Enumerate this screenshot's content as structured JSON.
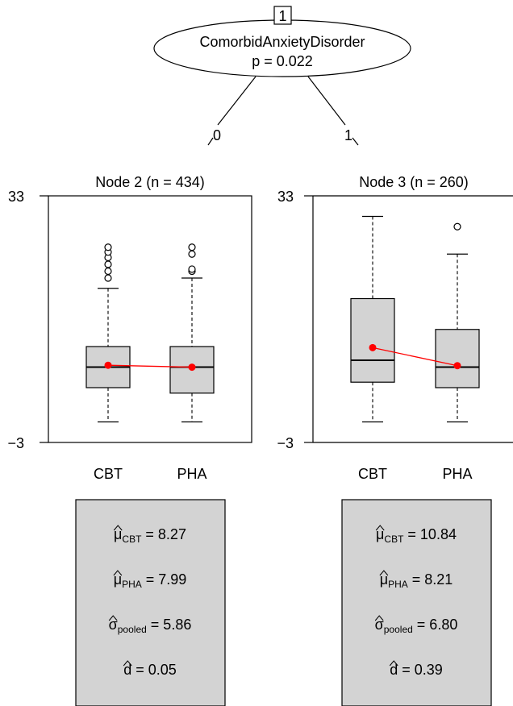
{
  "tree": {
    "root": {
      "id": "1",
      "variable": "ComorbidAnxietyDisorder",
      "pvalue": "p = 0.022"
    },
    "edges": [
      {
        "label": "0"
      },
      {
        "label": "1"
      }
    ]
  },
  "chart_data": [
    {
      "type": "boxplot",
      "title": "Node 2 (n = 434)",
      "ylim": [
        -3,
        33
      ],
      "yticks": [
        "33",
        "−3"
      ],
      "categories": [
        "CBT",
        "PHA"
      ],
      "box_color": "#d3d3d3",
      "mean_color": "#ff0000",
      "series": [
        {
          "name": "CBT",
          "whisker_low": 0,
          "q1": 5,
          "median": 8,
          "q3": 11,
          "whisker_high": 19.5,
          "outliers": [
            21,
            22,
            23,
            24,
            24.8,
            25.5
          ],
          "mean": 8.27
        },
        {
          "name": "PHA",
          "whisker_low": 0,
          "q1": 4.2,
          "median": 8,
          "q3": 11,
          "whisker_high": 21,
          "outliers": [
            22,
            22.3,
            24.5,
            25.5
          ],
          "mean": 7.99
        }
      ]
    },
    {
      "type": "boxplot",
      "title": "Node 3 (n = 260)",
      "ylim": [
        -3,
        33
      ],
      "yticks": [
        "33",
        "−3"
      ],
      "categories": [
        "CBT",
        "PHA"
      ],
      "box_color": "#d3d3d3",
      "mean_color": "#ff0000",
      "series": [
        {
          "name": "CBT",
          "whisker_low": 0,
          "q1": 5.8,
          "median": 9,
          "q3": 18,
          "whisker_high": 30,
          "outliers": [],
          "mean": 10.84
        },
        {
          "name": "PHA",
          "whisker_low": 0,
          "q1": 5,
          "median": 8,
          "q3": 13.5,
          "whisker_high": 24.5,
          "outliers": [
            28.5
          ],
          "mean": 8.21
        }
      ]
    }
  ],
  "stats": [
    {
      "rows": [
        {
          "symbol": "μ",
          "sub": "CBT",
          "value": "= 8.27"
        },
        {
          "symbol": "μ",
          "sub": "PHA",
          "value": "= 7.99"
        },
        {
          "symbol": "σ",
          "sub": "pooled",
          "value": "= 5.86"
        },
        {
          "symbol": "d",
          "sub": "",
          "value": "= 0.05"
        }
      ]
    },
    {
      "rows": [
        {
          "symbol": "μ",
          "sub": "CBT",
          "value": "= 10.84"
        },
        {
          "symbol": "μ",
          "sub": "PHA",
          "value": "= 8.21"
        },
        {
          "symbol": "σ",
          "sub": "pooled",
          "value": "= 6.80"
        },
        {
          "symbol": "d",
          "sub": "",
          "value": "= 0.39"
        }
      ]
    }
  ]
}
